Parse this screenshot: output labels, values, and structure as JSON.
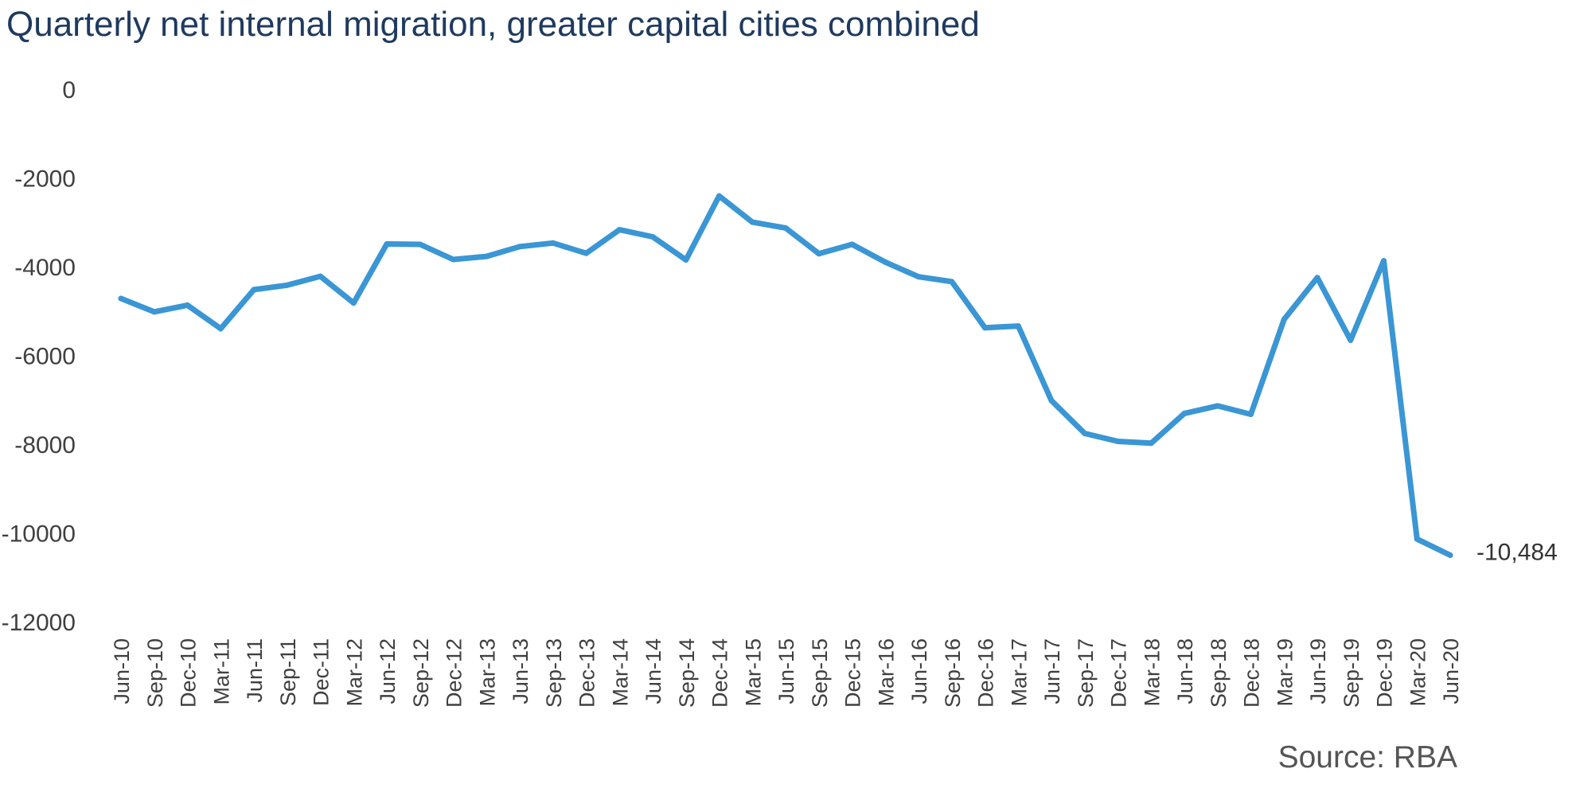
{
  "page": {
    "title": "Quarterly net internal migration, greater capital cities combined",
    "source": "Source: RBA"
  },
  "chart_data": {
    "type": "line",
    "title": "Quarterly net internal migration, greater capital cities combined",
    "xlabel": "",
    "ylabel": "",
    "ylim": [
      -12000,
      0
    ],
    "yticks": [
      0,
      -2000,
      -4000,
      -6000,
      -8000,
      -10000,
      -12000
    ],
    "ytick_labels": [
      "0",
      "-2000",
      "-4000",
      "-6000",
      "-8000",
      "-10000",
      "-12000"
    ],
    "grid": false,
    "legend": "none",
    "line_color": "#3a96d4",
    "categories": [
      "Jun-10",
      "Sep-10",
      "Dec-10",
      "Mar-11",
      "Jun-11",
      "Sep-11",
      "Dec-11",
      "Mar-12",
      "Jun-12",
      "Sep-12",
      "Dec-12",
      "Mar-13",
      "Jun-13",
      "Sep-13",
      "Dec-13",
      "Mar-14",
      "Jun-14",
      "Sep-14",
      "Dec-14",
      "Mar-15",
      "Jun-15",
      "Sep-15",
      "Dec-15",
      "Mar-16",
      "Jun-16",
      "Sep-16",
      "Dec-16",
      "Mar-17",
      "Jun-17",
      "Sep-17",
      "Dec-17",
      "Mar-18",
      "Jun-18",
      "Sep-18",
      "Dec-18",
      "Mar-19",
      "Jun-19",
      "Sep-19",
      "Dec-19",
      "Mar-20",
      "Jun-20"
    ],
    "series": [
      {
        "name": "Net internal migration",
        "values": [
          -4700,
          -5000,
          -4850,
          -5380,
          -4500,
          -4400,
          -4200,
          -4800,
          -3470,
          -3480,
          -3820,
          -3750,
          -3530,
          -3450,
          -3680,
          -3150,
          -3310,
          -3830,
          -2390,
          -2980,
          -3110,
          -3690,
          -3480,
          -3880,
          -4210,
          -4320,
          -5360,
          -5320,
          -7000,
          -7740,
          -7920,
          -7960,
          -7290,
          -7120,
          -7310,
          -5170,
          -4230,
          -5640,
          -3850,
          -10120,
          -10484
        ]
      }
    ],
    "annotations": [
      {
        "point": "Jun-20",
        "text": "-10,484"
      }
    ]
  }
}
